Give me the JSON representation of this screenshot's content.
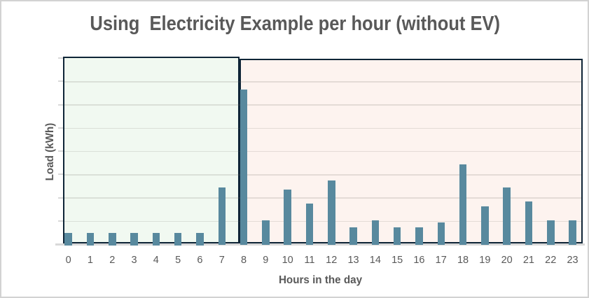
{
  "window": {
    "background": "#ffffff",
    "border_color": "#d2d2d2"
  },
  "chart_data": {
    "type": "bar",
    "title": "Using  Electricity Example per hour (without EV)",
    "xlabel": "Hours in the day",
    "ylabel": "Load (kWh)",
    "categories": [
      "0",
      "1",
      "2",
      "3",
      "4",
      "5",
      "6",
      "7",
      "8",
      "9",
      "10",
      "11",
      "12",
      "13",
      "14",
      "15",
      "16",
      "17",
      "18",
      "19",
      "20",
      "21",
      "22",
      "23"
    ],
    "values": [
      0.5,
      0.5,
      0.5,
      0.5,
      0.5,
      0.5,
      0.5,
      2.45,
      6.65,
      1.05,
      2.35,
      1.75,
      2.75,
      0.75,
      1.05,
      0.75,
      0.75,
      0.95,
      3.45,
      1.65,
      2.45,
      1.85,
      1.05,
      1.05
    ],
    "ylim": [
      0,
      8
    ],
    "gridline_step": 1,
    "y_tick_labels_visible": false,
    "grid_on": true,
    "legend": "none",
    "bar_color": "#58899e",
    "grid_tick_color": "#d9d9d9",
    "text_color": "#595959",
    "regions": [
      {
        "name": "hours-0-to-7-band",
        "from_hour": 0,
        "to_hour": 8,
        "fill": "#f1f9f1",
        "border": "#0f2537"
      },
      {
        "name": "hours-8-to-23-band",
        "from_hour": 8,
        "to_hour": 24,
        "fill": "#fdf3ef",
        "border": "#0f2537"
      }
    ]
  }
}
